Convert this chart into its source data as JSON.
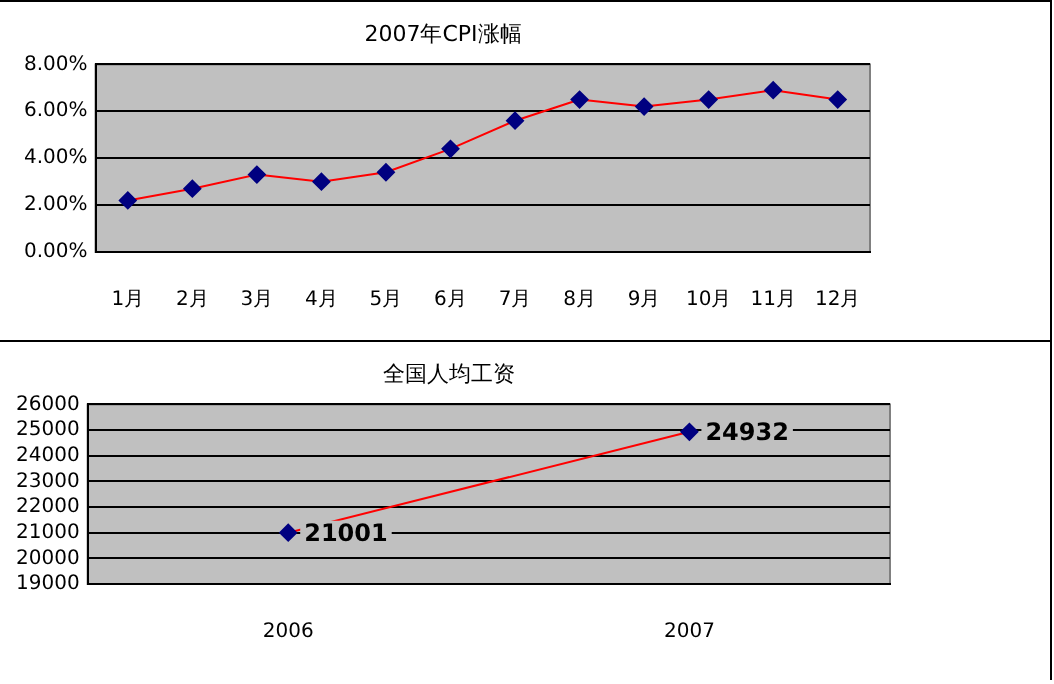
{
  "chart_data": [
    {
      "type": "line",
      "title": "2007年CPI涨幅",
      "categories": [
        "1月",
        "2月",
        "3月",
        "4月",
        "5月",
        "6月",
        "7月",
        "8月",
        "9月",
        "10月",
        "11月",
        "12月"
      ],
      "series": [
        {
          "color": "#ff0000",
          "values": [
            2.2,
            2.7,
            3.3,
            3.0,
            3.4,
            4.4,
            5.6,
            6.5,
            6.2,
            6.5,
            6.9,
            6.5
          ]
        }
      ],
      "ylim": [
        0,
        8
      ],
      "yticks": [
        {
          "value": 0,
          "label": "0.00%"
        },
        {
          "value": 2,
          "label": "2.00%"
        },
        {
          "value": 4,
          "label": "4.00%"
        },
        {
          "value": 6,
          "label": "6.00%"
        },
        {
          "value": 8,
          "label": "8.00%"
        }
      ],
      "grid": "y",
      "marker": "diamond",
      "legend": false
    },
    {
      "type": "line",
      "title": "全国人均工资",
      "categories": [
        "2006",
        "2007"
      ],
      "series": [
        {
          "color": "#ff0000",
          "values": [
            21001,
            24932
          ]
        }
      ],
      "ylim": [
        19000,
        26000
      ],
      "yticks": [
        19000,
        20000,
        21000,
        22000,
        23000,
        24000,
        25000,
        26000
      ],
      "grid": "y",
      "marker": "diamond",
      "legend": false,
      "data_labels": true
    }
  ]
}
